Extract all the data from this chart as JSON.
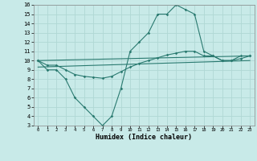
{
  "xlabel": "Humidex (Indice chaleur)",
  "xlim": [
    -0.5,
    23.5
  ],
  "ylim": [
    3,
    16
  ],
  "xticks": [
    0,
    1,
    2,
    3,
    4,
    5,
    6,
    7,
    8,
    9,
    10,
    11,
    12,
    13,
    14,
    15,
    16,
    17,
    18,
    19,
    20,
    21,
    22,
    23
  ],
  "yticks": [
    3,
    4,
    5,
    6,
    7,
    8,
    9,
    10,
    11,
    12,
    13,
    14,
    15,
    16
  ],
  "background_color": "#c8eae8",
  "grid_color": "#b0d8d4",
  "line_color": "#2a7a70",
  "line1_x": [
    0,
    1,
    2,
    3,
    4,
    5,
    6,
    7,
    8,
    9,
    10,
    11,
    12,
    13,
    14,
    15,
    16,
    17,
    18,
    19,
    20,
    21,
    22,
    23
  ],
  "line1_y": [
    10,
    9,
    9,
    8,
    6,
    5,
    4,
    3,
    4,
    7,
    11,
    12,
    13,
    15,
    15,
    16,
    15.5,
    15,
    11,
    10.5,
    10,
    10,
    10.5,
    10.5
  ],
  "line2_x": [
    0,
    1,
    2,
    3,
    4,
    5,
    6,
    7,
    8,
    9,
    10,
    11,
    12,
    13,
    14,
    15,
    16,
    17,
    18,
    19,
    20,
    21,
    22,
    23
  ],
  "line2_y": [
    10,
    9.5,
    9.5,
    9,
    8.5,
    8.3,
    8.2,
    8.1,
    8.3,
    8.8,
    9.3,
    9.7,
    10.0,
    10.3,
    10.6,
    10.8,
    11.0,
    11.0,
    10.5,
    10.5,
    10.0,
    10.0,
    10.2,
    10.5
  ],
  "line3_x": [
    0,
    23
  ],
  "line3_y": [
    10.0,
    10.5
  ],
  "line4_x": [
    0,
    23
  ],
  "line4_y": [
    9.3,
    10.0
  ],
  "xlabel_fontsize": 6,
  "tick_fontsize_x": 4,
  "tick_fontsize_y": 5
}
